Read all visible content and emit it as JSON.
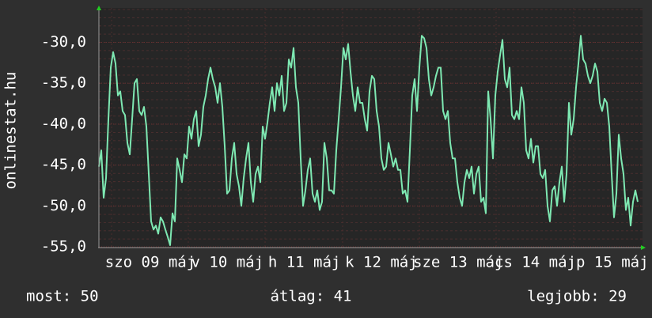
{
  "chart_data": {
    "type": "line",
    "y_axis_label": "onlinestat.hu",
    "ylim": [
      -55,
      -25.8
    ],
    "yticks": [
      {
        "value": -30,
        "label": "-30,0"
      },
      {
        "value": -35,
        "label": "-35,0"
      },
      {
        "value": -40,
        "label": "-40,0"
      },
      {
        "value": -45,
        "label": "-45,0"
      },
      {
        "value": -50,
        "label": "-50,0"
      },
      {
        "value": -55,
        "label": "-55,0"
      }
    ],
    "grid": true,
    "day_labels": [
      "szo 09 máj",
      "v 10 máj",
      "h 11 máj",
      "k 12 máj",
      "sze 13 máj",
      "cs 14 máj",
      "p 15 máj"
    ],
    "series": [
      {
        "color": "#7ee8b2",
        "values": [
          -45.2,
          -43.2,
          -49.0,
          -46.6,
          -39.4,
          -33.1,
          -31.2,
          -32.6,
          -36.5,
          -36.0,
          -38.4,
          -38.9,
          -42.3,
          -43.7,
          -39.4,
          -35.0,
          -34.5,
          -38.4,
          -38.9,
          -37.9,
          -40.3,
          -46.1,
          -51.9,
          -52.9,
          -52.4,
          -53.4,
          -51.4,
          -51.9,
          -52.9,
          -53.8,
          -54.8,
          -50.9,
          -51.9,
          -44.2,
          -45.6,
          -47.1,
          -43.7,
          -44.2,
          -40.3,
          -41.8,
          -39.4,
          -38.4,
          -42.7,
          -41.3,
          -37.9,
          -36.5,
          -34.5,
          -33.1,
          -34.5,
          -35.5,
          -37.4,
          -35.0,
          -37.9,
          -42.7,
          -48.5,
          -48.1,
          -44.2,
          -42.3,
          -46.1,
          -47.6,
          -50.0,
          -46.6,
          -44.2,
          -42.3,
          -47.1,
          -49.5,
          -46.1,
          -45.2,
          -47.1,
          -40.3,
          -41.8,
          -39.8,
          -37.4,
          -35.5,
          -38.4,
          -35.0,
          -36.5,
          -34.1,
          -38.4,
          -37.4,
          -32.1,
          -33.1,
          -30.7,
          -35.5,
          -37.4,
          -44.2,
          -50.0,
          -48.1,
          -45.6,
          -44.2,
          -48.5,
          -49.5,
          -48.1,
          -50.5,
          -49.5,
          -42.3,
          -44.2,
          -48.1,
          -48.1,
          -48.5,
          -43.2,
          -39.4,
          -35.5,
          -30.7,
          -32.1,
          -30.2,
          -33.6,
          -36.5,
          -38.4,
          -35.5,
          -37.4,
          -37.4,
          -39.4,
          -40.8,
          -36.0,
          -34.1,
          -34.5,
          -38.4,
          -40.3,
          -44.2,
          -45.6,
          -45.2,
          -42.3,
          -43.7,
          -45.2,
          -44.2,
          -45.6,
          -45.6,
          -48.5,
          -48.1,
          -49.5,
          -43.2,
          -36.5,
          -34.5,
          -38.4,
          -33.1,
          -29.2,
          -29.5,
          -30.7,
          -34.5,
          -36.5,
          -35.5,
          -34.1,
          -33.1,
          -33.1,
          -38.4,
          -39.4,
          -38.4,
          -42.3,
          -44.2,
          -44.2,
          -47.1,
          -49.0,
          -50.0,
          -47.1,
          -45.6,
          -46.6,
          -45.2,
          -48.5,
          -46.1,
          -45.2,
          -49.5,
          -49.0,
          -50.9,
          -36.0,
          -39.4,
          -44.2,
          -36.5,
          -33.6,
          -31.6,
          -29.7,
          -34.5,
          -35.5,
          -33.1,
          -38.9,
          -39.4,
          -38.4,
          -39.4,
          -35.5,
          -37.4,
          -43.2,
          -44.2,
          -41.8,
          -44.7,
          -42.7,
          -42.7,
          -46.1,
          -46.6,
          -45.6,
          -50.0,
          -51.9,
          -48.1,
          -47.6,
          -50.0,
          -47.1,
          -45.2,
          -49.5,
          -46.1,
          -37.4,
          -41.3,
          -39.4,
          -35.5,
          -32.6,
          -29.2,
          -32.1,
          -32.6,
          -34.1,
          -35.0,
          -34.1,
          -32.6,
          -33.6,
          -37.4,
          -38.4,
          -36.9,
          -37.4,
          -40.3,
          -46.1,
          -51.4,
          -48.5,
          -41.3,
          -44.2,
          -46.1,
          -50.5,
          -49.0,
          -52.4,
          -49.5,
          -48.1,
          -49.5
        ]
      }
    ],
    "stats": [
      "most: 50",
      "átlag: 41",
      "legjobb: 29"
    ]
  }
}
